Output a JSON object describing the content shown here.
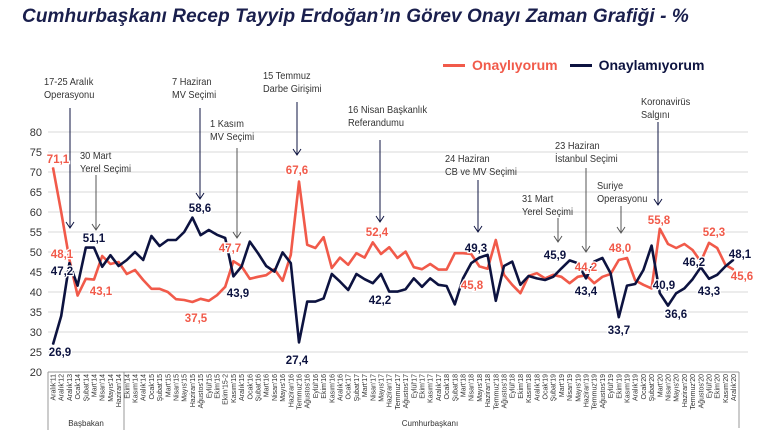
{
  "title": "Cumhurbaşkanı Recep Tayyip Erdoğan’ın Görev Onayı Zaman Grafiği - %",
  "colors": {
    "approve": "#f15a4a",
    "disapprove": "#0d1340",
    "grid": "#d9d9d9",
    "annotation": "#333333"
  },
  "chart_data": {
    "type": "line",
    "title": "Cumhurbaşkanı Recep Tayyip Erdoğan’ın Görev Onayı Zaman Grafiği - %",
    "xlabel": "",
    "ylabel": "",
    "ylim": [
      20,
      80
    ],
    "yticks": [
      "20",
      "25",
      "30",
      "35",
      "40",
      "45",
      "50",
      "55",
      "60",
      "65",
      "70",
      "75",
      "80"
    ],
    "grid": true,
    "legend_position": "top-right",
    "groups": [
      {
        "label": "Başbakan",
        "from": 0,
        "to": 8
      },
      {
        "label": "Cumhurbaşkanı",
        "from": 9,
        "to": 83
      }
    ],
    "categories": [
      "Aralık'11",
      "Aralık'12",
      "Aralık'13",
      "Ocak'14",
      "Şubat'14",
      "Mart'14",
      "Nisan'14",
      "Mayıs'14",
      "Haziran'14",
      "Ekim'14",
      "Kasım'14",
      "Aralık'14",
      "Ocak'15",
      "Şubat'15",
      "Mart'15",
      "Nisan'15",
      "Mayıs'15",
      "Haziran'15",
      "Ağustos'15",
      "Eylül'15",
      "Ekim'15",
      "Ekim'15-2",
      "Kasım'15",
      "Aralık'15",
      "Ocak'16",
      "Şubat'16",
      "Mart'16",
      "Nisan'16",
      "Mayıs'16",
      "Haziran'16",
      "Temmuz'16",
      "Ağustos'16",
      "Eylül'16",
      "Ekim'16",
      "Kasım'16",
      "Aralık'16",
      "Ocak'17",
      "Şubat'17",
      "Mart'17",
      "Nisan'17",
      "Mayıs'17",
      "Haziran'17",
      "Temmuz'17",
      "Ağustos'17",
      "Eylül'17",
      "Ekim'17",
      "Kasım'17",
      "Aralık'17",
      "Ocak'18",
      "Şubat'18",
      "Mart'18",
      "Nisan'18",
      "Mayıs'18",
      "Haziran'18",
      "Temmuz'18",
      "Ağustos'18",
      "Eylül'18",
      "Ekim'18",
      "Kasım'18",
      "Aralık'18",
      "Ocak'19",
      "Şubat'19",
      "Mart'19",
      "Nisan'19",
      "Mayıs'19",
      "Haziran'19",
      "Temmuz'19",
      "Ağustos'19",
      "Eylül'19",
      "Ekim'19",
      "Kasım'19",
      "Aralık'19",
      "Ocak'20",
      "Şubat'20",
      "Mart'20",
      "Nisan'20",
      "Mayıs'20",
      "Haziran'20",
      "Temmuz'20",
      "Ağustos'20",
      "Eylül'20",
      "Ekim'20",
      "Kasım'20",
      "Aralık'20"
    ],
    "series": [
      {
        "name": "Onaylıyorum",
        "color": "#f15a4a",
        "values": [
          71.1,
          60,
          48.1,
          39.1,
          43.3,
          43.1,
          49.0,
          47.0,
          47.5,
          44.5,
          45.5,
          43.0,
          40.8,
          40.8,
          40.0,
          38.2,
          38.0,
          37.5,
          38.3,
          37.8,
          39.2,
          41.3,
          47.7,
          46.4,
          43.3,
          43.8,
          44.2,
          45.7,
          42.8,
          49.3,
          67.6,
          51.8,
          51.0,
          53.7,
          46.0,
          48.6,
          46.8,
          49.7,
          48.6,
          52.4,
          49.5,
          51.2,
          48.5,
          50.1,
          46.2,
          45.7,
          47.0,
          45.6,
          45.6,
          49.7,
          49.7,
          49.5,
          46.4,
          45.8,
          53.0,
          44.3,
          41.8,
          39.7,
          44.0,
          44.7,
          43.4,
          44.3,
          43.8,
          42.2,
          43.8,
          44.2,
          42.2,
          43.8,
          44.5,
          48.0,
          48.5,
          42.9,
          41.8,
          40.9,
          55.8,
          52.0,
          51.0,
          52.0,
          50.5,
          47.6,
          52.3,
          51.0,
          46.8,
          45.6
        ]
      },
      {
        "name": "Onaylamıyorum",
        "color": "#0d1340",
        "values": [
          26.9,
          34.0,
          47.2,
          41.6,
          51.1,
          51.1,
          46.3,
          49.2,
          46.5,
          48.0,
          50.0,
          48.0,
          54.0,
          51.5,
          53.0,
          53.0,
          55.0,
          58.6,
          54.2,
          55.5,
          54.3,
          53.5,
          43.9,
          46.4,
          52.6,
          49.7,
          46.5,
          45.1,
          49.9,
          47.2,
          27.4,
          37.6,
          37.6,
          38.4,
          44.5,
          42.6,
          40.5,
          44.5,
          43.2,
          42.2,
          44.5,
          40.1,
          40.1,
          40.7,
          43.4,
          41.3,
          43.4,
          41.8,
          41.5,
          36.9,
          43.4,
          47.2,
          48.6,
          49.3,
          37.8,
          46.5,
          47.6,
          41.8,
          44.0,
          43.4,
          43.0,
          43.8,
          45.9,
          47.9,
          47.2,
          43.4,
          47.6,
          48.5,
          44.7,
          33.7,
          41.6,
          42.0,
          45.5,
          51.6,
          39.7,
          36.6,
          39.7,
          40.9,
          43.2,
          46.2,
          43.3,
          44.3,
          46.4,
          48.1
        ]
      }
    ],
    "data_labels": [
      {
        "series": 0,
        "index": 0,
        "text": "71,1"
      },
      {
        "series": 0,
        "index": 2,
        "text": "48,1"
      },
      {
        "series": 1,
        "index": 2,
        "text": "47,2"
      },
      {
        "series": 1,
        "index": 0,
        "text": "26,9"
      },
      {
        "series": 1,
        "index": 4,
        "text": "51,1"
      },
      {
        "series": 0,
        "index": 5,
        "text": "43,1"
      },
      {
        "series": 1,
        "index": 17,
        "text": "58,6"
      },
      {
        "series": 0,
        "index": 17,
        "text": "37,5"
      },
      {
        "series": 0,
        "index": 22,
        "text": "47,7"
      },
      {
        "series": 1,
        "index": 22,
        "text": "43,9"
      },
      {
        "series": 0,
        "index": 30,
        "text": "67,6"
      },
      {
        "series": 1,
        "index": 30,
        "text": "27,4"
      },
      {
        "series": 0,
        "index": 39,
        "text": "52,4"
      },
      {
        "series": 1,
        "index": 39,
        "text": "42,2"
      },
      {
        "series": 1,
        "index": 53,
        "text": "49,3"
      },
      {
        "series": 0,
        "index": 53,
        "text": "45,8"
      },
      {
        "series": 1,
        "index": 62,
        "text": "45,9"
      },
      {
        "series": 0,
        "index": 65,
        "text": "44,2"
      },
      {
        "series": 1,
        "index": 65,
        "text": "43,4"
      },
      {
        "series": 0,
        "index": 69,
        "text": "48,0"
      },
      {
        "series": 1,
        "index": 69,
        "text": "33,7"
      },
      {
        "series": 0,
        "index": 74,
        "text": "55,8"
      },
      {
        "series": 1,
        "index": 75,
        "text": "36,6"
      },
      {
        "series": 1,
        "index": 77,
        "text": "40,9"
      },
      {
        "series": 1,
        "index": 79,
        "text": "46,2"
      },
      {
        "series": 0,
        "index": 80,
        "text": "52,3"
      },
      {
        "series": 1,
        "index": 80,
        "text": "43,3"
      },
      {
        "series": 1,
        "index": 83,
        "text": "48,1"
      },
      {
        "series": 0,
        "index": 83,
        "text": "45,6"
      }
    ],
    "annotations": [
      {
        "lines": [
          "17-25 Aralık",
          "Operasyonu"
        ],
        "index": 2
      },
      {
        "lines": [
          "30 Mart",
          "Yerel Seçimi"
        ],
        "index": 5
      },
      {
        "lines": [
          "7 Haziran",
          "MV Seçimi"
        ],
        "index": 17
      },
      {
        "lines": [
          "1 Kasım",
          "MV Seçimi"
        ],
        "index": 22
      },
      {
        "lines": [
          "15 Temmuz",
          "Darbe Girişimi"
        ],
        "index": 30
      },
      {
        "lines": [
          "16 Nisan Başkanlık",
          "Referandumu"
        ],
        "index": 39
      },
      {
        "lines": [
          "24 Haziran",
          "CB  ve MV Seçimi"
        ],
        "index": 53
      },
      {
        "lines": [
          "31 Mart",
          "Yerel Seçimi"
        ],
        "index": 62
      },
      {
        "lines": [
          "23 Haziran",
          "İstanbul Seçimi"
        ],
        "index": 65
      },
      {
        "lines": [
          "Suriye",
          "Operasyonu"
        ],
        "index": 69
      },
      {
        "lines": [
          "Koronavirüs",
          "Salgını"
        ],
        "index": 74
      }
    ]
  }
}
